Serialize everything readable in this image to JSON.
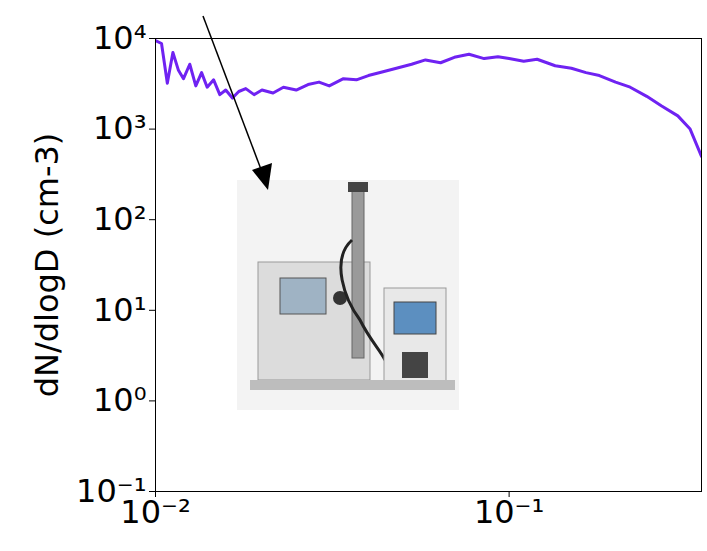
{
  "chart_data": {
    "type": "line",
    "y_label": "dN/dlogD (cm-3)",
    "log": true,
    "grid": false,
    "color": "#6f22f2",
    "xlim": [
      0.01,
      0.35
    ],
    "ylim": [
      0.1,
      10000
    ],
    "xticks": [
      {
        "value": 0.01,
        "label": "10⁻²"
      },
      {
        "value": 0.1,
        "label": "10⁻¹"
      }
    ],
    "yticks": [
      {
        "value": 0.1,
        "label": "10⁻¹"
      },
      {
        "value": 1,
        "label": "10⁰"
      },
      {
        "value": 10,
        "label": "10¹"
      },
      {
        "value": 100,
        "label": "10²"
      },
      {
        "value": 1000,
        "label": "10³"
      },
      {
        "value": 10000,
        "label": "10⁴"
      }
    ],
    "x": [
      0.01,
      0.0104,
      0.0108,
      0.0112,
      0.0116,
      0.012,
      0.0125,
      0.013,
      0.0135,
      0.014,
      0.0146,
      0.0152,
      0.0158,
      0.0165,
      0.0172,
      0.018,
      0.019,
      0.02,
      0.0215,
      0.023,
      0.025,
      0.027,
      0.029,
      0.031,
      0.034,
      0.037,
      0.04,
      0.044,
      0.048,
      0.053,
      0.058,
      0.064,
      0.07,
      0.077,
      0.085,
      0.093,
      0.1,
      0.11,
      0.12,
      0.135,
      0.15,
      0.165,
      0.18,
      0.2,
      0.22,
      0.245,
      0.27,
      0.3,
      0.325,
      0.35
    ],
    "values": [
      9500,
      8800,
      3200,
      7000,
      4500,
      3600,
      5200,
      3000,
      4200,
      2900,
      3500,
      2400,
      2700,
      2200,
      2600,
      2800,
      2400,
      2700,
      2500,
      2900,
      2700,
      3100,
      3300,
      3000,
      3600,
      3500,
      3900,
      4300,
      4700,
      5200,
      5800,
      5400,
      6200,
      6700,
      6000,
      6300,
      6000,
      5600,
      5900,
      5000,
      4700,
      4200,
      3900,
      3300,
      2900,
      2300,
      1800,
      1400,
      1000,
      500
    ]
  }
}
